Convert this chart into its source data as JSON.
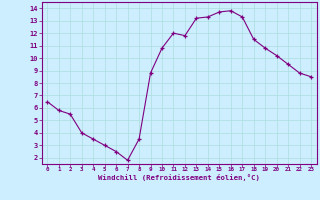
{
  "x": [
    0,
    1,
    2,
    3,
    4,
    5,
    6,
    7,
    8,
    9,
    10,
    11,
    12,
    13,
    14,
    15,
    16,
    17,
    18,
    19,
    20,
    21,
    22,
    23
  ],
  "y": [
    6.5,
    5.8,
    5.5,
    4.0,
    3.5,
    3.0,
    2.5,
    1.8,
    3.5,
    8.8,
    10.8,
    12.0,
    11.8,
    13.2,
    13.3,
    13.7,
    13.8,
    13.3,
    11.5,
    10.8,
    10.2,
    9.5,
    8.8,
    8.5
  ],
  "xlabel": "Windchill (Refroidissement éolien,°C)",
  "line_color": "#800080",
  "marker_color": "#800080",
  "bg_color": "#cceeff",
  "grid_color": "#aadddd",
  "tick_label_color": "#800080",
  "axis_label_color": "#800080",
  "ylim": [
    1.5,
    14.5
  ],
  "xlim": [
    -0.5,
    23.5
  ],
  "yticks": [
    2,
    3,
    4,
    5,
    6,
    7,
    8,
    9,
    10,
    11,
    12,
    13,
    14
  ],
  "xticks": [
    0,
    1,
    2,
    3,
    4,
    5,
    6,
    7,
    8,
    9,
    10,
    11,
    12,
    13,
    14,
    15,
    16,
    17,
    18,
    19,
    20,
    21,
    22,
    23
  ],
  "xtick_labels": [
    "0",
    "1",
    "2",
    "3",
    "4",
    "5",
    "6",
    "7",
    "8",
    "9",
    "10",
    "11",
    "12",
    "13",
    "14",
    "15",
    "16",
    "17",
    "18",
    "19",
    "20",
    "21",
    "22",
    "23"
  ],
  "ytick_labels": [
    "2",
    "3",
    "4",
    "5",
    "6",
    "7",
    "8",
    "9",
    "10",
    "11",
    "12",
    "13",
    "14"
  ]
}
